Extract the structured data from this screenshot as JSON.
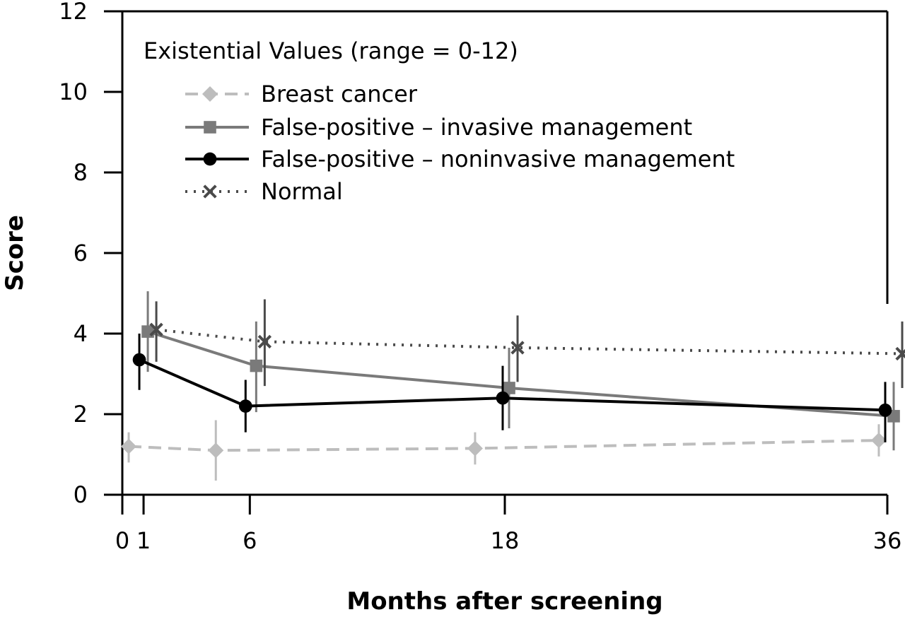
{
  "chart_data": {
    "type": "line",
    "title": "Existential Values (range = 0-12)",
    "xlabel": "Months after screening",
    "ylabel": "Score",
    "xlim": [
      0,
      36
    ],
    "ylim": [
      0,
      12
    ],
    "x_ticks": [
      0,
      1,
      6,
      18,
      36
    ],
    "y_ticks": [
      0,
      2,
      4,
      6,
      8,
      10,
      12
    ],
    "grid": false,
    "legend_position": "top-left",
    "series": [
      {
        "name": "Breast cancer",
        "color": "#bdbdbd",
        "line_style": "dashed",
        "marker": "diamond",
        "x": [
          0.3,
          4.4,
          16.6,
          35.6
        ],
        "y": [
          1.2,
          1.1,
          1.15,
          1.35
        ],
        "err_low": [
          0.8,
          0.35,
          0.75,
          0.95
        ],
        "err_high": [
          1.55,
          1.85,
          1.55,
          1.75
        ]
      },
      {
        "name": "False-positive – invasive management",
        "color": "#7a7a7a",
        "line_style": "solid",
        "marker": "square",
        "x": [
          1.2,
          6.3,
          18.2,
          36.3
        ],
        "y": [
          4.05,
          3.2,
          2.65,
          1.95
        ],
        "err_low": [
          3.05,
          2.05,
          1.65,
          1.1
        ],
        "err_high": [
          5.05,
          4.3,
          3.65,
          2.8
        ]
      },
      {
        "name": "False-positive – noninvasive management",
        "color": "#000000",
        "line_style": "solid",
        "marker": "circle",
        "x": [
          0.8,
          5.8,
          17.9,
          35.9
        ],
        "y": [
          3.35,
          2.2,
          2.4,
          2.1
        ],
        "err_low": [
          2.6,
          1.55,
          1.6,
          1.3
        ],
        "err_high": [
          4.0,
          2.85,
          3.2,
          2.8
        ]
      },
      {
        "name": "Normal",
        "color": "#4a4a4a",
        "line_style": "dotted",
        "marker": "x",
        "x": [
          1.6,
          6.7,
          18.6,
          36.7
        ],
        "y": [
          4.1,
          3.8,
          3.65,
          3.5
        ],
        "err_low": [
          3.3,
          2.7,
          2.8,
          2.65
        ],
        "err_high": [
          4.8,
          4.85,
          4.45,
          4.3
        ]
      }
    ]
  }
}
